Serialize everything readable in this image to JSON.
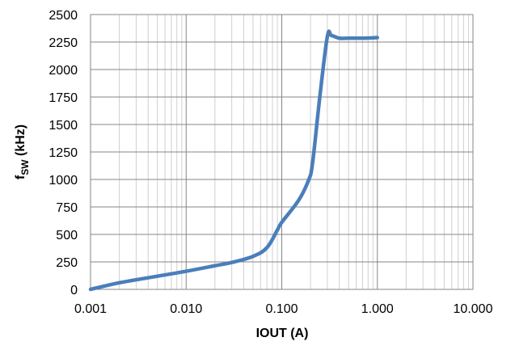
{
  "chart_data": {
    "type": "line",
    "x_scale": "log",
    "xlabel": "IOUT (A)",
    "ylabel_main": "f",
    "ylabel_sub": "SW",
    "ylabel_unit": " (kHz)",
    "xlim": [
      0.001,
      10
    ],
    "ylim": [
      0,
      2500
    ],
    "x_ticks": [
      0.001,
      0.01,
      0.1,
      1,
      10
    ],
    "x_tick_labels": [
      "0.001",
      "0.010",
      "0.100",
      "1.000",
      "10.000"
    ],
    "y_ticks": [
      0,
      250,
      500,
      750,
      1000,
      1250,
      1500,
      1750,
      2000,
      2250,
      2500
    ],
    "y_tick_labels": [
      "0",
      "250",
      "500",
      "750",
      "1000",
      "1250",
      "1500",
      "1750",
      "2000",
      "2250",
      "2500"
    ],
    "grid": true,
    "minor_grid_x": true,
    "legend": "none",
    "series": [
      {
        "color": "#4a7ebb",
        "x": [
          0.001,
          0.002,
          0.005,
          0.01,
          0.02,
          0.03,
          0.05,
          0.07,
          0.09,
          0.1,
          0.15,
          0.19,
          0.21,
          0.25,
          0.3,
          0.33,
          0.4,
          0.5,
          0.7,
          1.0
        ],
        "y": [
          0,
          60,
          120,
          165,
          215,
          245,
          300,
          380,
          540,
          610,
          810,
          990,
          1150,
          1750,
          2300,
          2310,
          2285,
          2285,
          2285,
          2290
        ]
      }
    ]
  }
}
